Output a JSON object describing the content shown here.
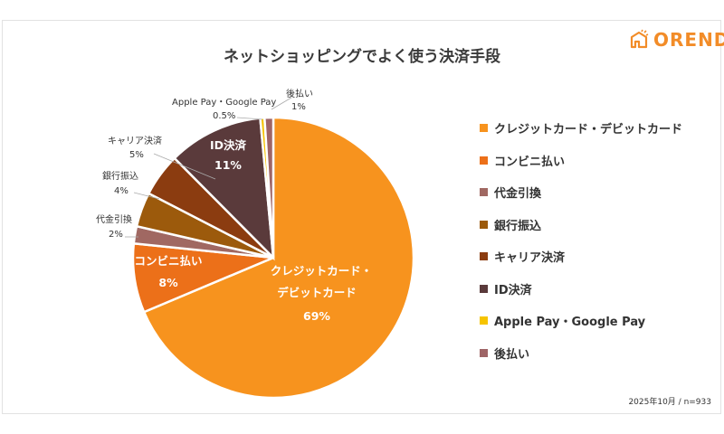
{
  "title": "ネットショッピングでよく使う決済手段",
  "logo": "OREND",
  "footnote": "2025年10月 / n=933",
  "chart_data": {
    "type": "pie",
    "title": "ネットショッピングでよく使う決済手段",
    "start": "top",
    "direction": "clockwise",
    "legend_placement": "right",
    "slices": [
      {
        "label": "クレジットカード・デビットカード",
        "value": 69,
        "display": "69%",
        "color": "#F7931E"
      },
      {
        "label": "コンビニ払い",
        "value": 8,
        "display": "8%",
        "color": "#EC7019"
      },
      {
        "label": "代金引換",
        "value": 2,
        "display": "2%",
        "color": "#A06862"
      },
      {
        "label": "銀行振込",
        "value": 4,
        "display": "4%",
        "color": "#9C5A0C"
      },
      {
        "label": "キャリア決済",
        "value": 5,
        "display": "5%",
        "color": "#8B3C10"
      },
      {
        "label": "ID決済",
        "value": 11,
        "display": "11%",
        "color": "#5A3A3B"
      },
      {
        "label": "Apple Pay・Google Pay",
        "value": 0.5,
        "display": "0.5%",
        "color": "#F6C400"
      },
      {
        "label": "後払い",
        "value": 1,
        "display": "1%",
        "color": "#9E6466"
      }
    ],
    "data_labels": {
      "credit_line1": "クレジットカード・",
      "credit_line2": "デビットカード"
    }
  }
}
